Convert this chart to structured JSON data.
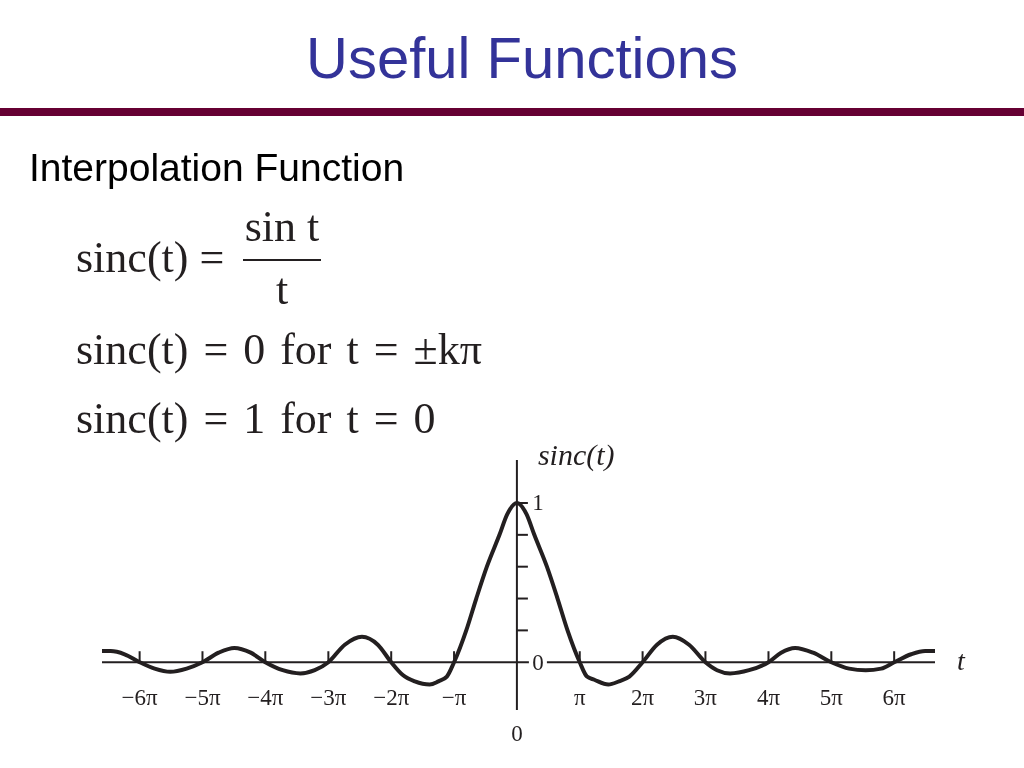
{
  "chart_data": {
    "type": "line",
    "title": "Useful Functions",
    "subtitle": "Interpolation Function",
    "xlabel": "t",
    "ylabel": "sinc(t)",
    "annotations": [
      "sinc(t) =",
      "sin t",
      "t",
      "sinc(t) = 0 for t = ±kπ",
      "sinc(t) = 1 for t = 0",
      "0"
    ],
    "x": [
      -20.73,
      -20.3,
      -19.6,
      -18.85,
      -18.1,
      -17.32,
      -16.5,
      -15.71,
      -14.9,
      -14.12,
      -13.3,
      -12.57,
      -11.7,
      -10.82,
      -10.1,
      -9.42,
      -8.6,
      -7.74,
      -6.95,
      -6.28,
      -5.7,
      -5.1,
      -4.36,
      -3.92,
      -3.5,
      -3.14,
      -2.53,
      -2.03,
      -1.5,
      -0.87,
      -0.48,
      0,
      0.48,
      0.87,
      1.5,
      2.03,
      2.53,
      3.14,
      3.5,
      3.87,
      4.57,
      5.1,
      5.62,
      6.28,
      7.0,
      7.79,
      8.6,
      9.42,
      10.0,
      10.65,
      11.6,
      12.57,
      13.2,
      13.9,
      14.8,
      15.71,
      16.6,
      17.43,
      18.2,
      18.85,
      19.7,
      20.4,
      20.89
    ],
    "values": [
      0.07,
      0.07,
      0.05,
      0,
      -0.04,
      -0.06,
      -0.04,
      0,
      0.06,
      0.09,
      0.06,
      0,
      -0.05,
      -0.07,
      -0.05,
      0,
      0.11,
      0.16,
      0.11,
      0,
      -0.08,
      -0.12,
      -0.14,
      -0.12,
      -0.09,
      0,
      0.2,
      0.4,
      0.6,
      0.8,
      0.93,
      1,
      0.93,
      0.8,
      0.6,
      0.4,
      0.2,
      0,
      -0.09,
      -0.11,
      -0.14,
      -0.12,
      -0.09,
      0,
      0.11,
      0.16,
      0.11,
      0,
      -0.05,
      -0.07,
      -0.05,
      0,
      0.06,
      0.09,
      0.06,
      0,
      -0.04,
      -0.05,
      -0.04,
      0,
      0.05,
      0.07,
      0.07
    ],
    "color": "#231f20",
    "xlim": [
      -20.73,
      20.89
    ],
    "ylim": [
      -0.3,
      1.27
    ],
    "xticks": [
      {
        "value": -18.85,
        "label": "−6π"
      },
      {
        "value": -15.71,
        "label": "−5π"
      },
      {
        "value": -12.57,
        "label": "−4π"
      },
      {
        "value": -9.42,
        "label": "−3π"
      },
      {
        "value": -6.28,
        "label": "−2π"
      },
      {
        "value": -3.14,
        "label": "−π"
      },
      {
        "value": 3.14,
        "label": "π"
      },
      {
        "value": 6.28,
        "label": "2π"
      },
      {
        "value": 9.42,
        "label": "3π"
      },
      {
        "value": 12.57,
        "label": "4π"
      },
      {
        "value": 15.71,
        "label": "5π"
      },
      {
        "value": 18.85,
        "label": "6π"
      }
    ],
    "yticks": [
      0,
      {
        "value": 0.2,
        "label": null
      },
      {
        "value": 0.4,
        "label": null
      },
      {
        "value": 0.6,
        "label": null
      },
      {
        "value": 0.8,
        "label": null
      },
      1
    ]
  }
}
